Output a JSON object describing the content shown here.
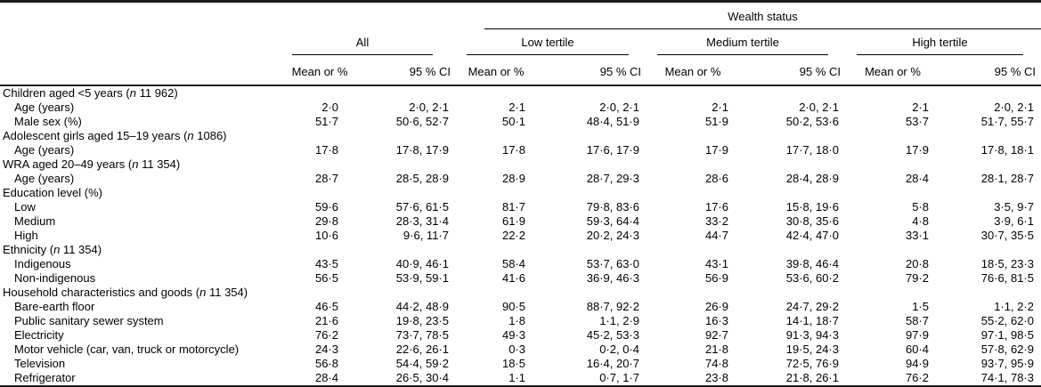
{
  "table": {
    "wealth_status_label": "Wealth status",
    "groups": [
      {
        "label": "All"
      },
      {
        "label": "Low tertile"
      },
      {
        "label": "Medium tertile"
      },
      {
        "label": "High tertile"
      }
    ],
    "subheaders": {
      "mean": "Mean or %",
      "ci": "95 % CI"
    },
    "rows": [
      {
        "type": "section",
        "label": "Children aged <5 years (n 11 962)"
      },
      {
        "type": "data",
        "label": "Age (years)",
        "values": [
          "2·0",
          "2·0, 2·1",
          "2·1",
          "2·0, 2·1",
          "2·1",
          "2·0, 2·1",
          "2·1",
          "2·0, 2·1"
        ]
      },
      {
        "type": "data",
        "label": "Male sex (%)",
        "values": [
          "51·7",
          "50·6, 52·7",
          "50·1",
          "48·4, 51·9",
          "51·9",
          "50·2, 53·6",
          "53·7",
          "51·7, 55·7"
        ]
      },
      {
        "type": "section",
        "label": "Adolescent girls aged 15–19 years (n 1086)"
      },
      {
        "type": "data",
        "label": "Age (years)",
        "values": [
          "17·8",
          "17·8, 17·9",
          "17·8",
          "17·6, 17·9",
          "17·9",
          "17·7, 18·0",
          "17·9",
          "17·8, 18·1"
        ]
      },
      {
        "type": "section",
        "label": "WRA aged 20–49 years (n 11 354)"
      },
      {
        "type": "data",
        "label": "Age (years)",
        "values": [
          "28·7",
          "28·5, 28·9",
          "28·9",
          "28·7, 29·3",
          "28·6",
          "28·4, 28·9",
          "28·4",
          "28·1, 28·7"
        ]
      },
      {
        "type": "section",
        "label": "Education level (%)"
      },
      {
        "type": "data",
        "label": "Low",
        "values": [
          "59·6",
          "57·6, 61·5",
          "81·7",
          "79·8, 83·6",
          "17·6",
          "15·8, 19·6",
          "5·8",
          "3·5, 9·7"
        ]
      },
      {
        "type": "data",
        "label": "Medium",
        "values": [
          "29·8",
          "28·3, 31·4",
          "61·9",
          "59·3, 64·4",
          "33·2",
          "30·8, 35·6",
          "4·8",
          "3·9, 6·1"
        ]
      },
      {
        "type": "data",
        "label": "High",
        "values": [
          "10·6",
          "9·6, 11·7",
          "22·2",
          "20·2, 24·3",
          "44·7",
          "42·4, 47·0",
          "33·1",
          "30·7, 35·5"
        ]
      },
      {
        "type": "section",
        "label": "Ethnicity (n 11 354)"
      },
      {
        "type": "data",
        "label": "Indigenous",
        "values": [
          "43·5",
          "40·9, 46·1",
          "58·4",
          "53·7, 63·0",
          "43·1",
          "39·8, 46·4",
          "20·8",
          "18·5, 23·3"
        ]
      },
      {
        "type": "data",
        "label": "Non-indigenous",
        "values": [
          "56·5",
          "53·9, 59·1",
          "41·6",
          "36·9, 46·3",
          "56·9",
          "53·6, 60·2",
          "79·2",
          "76·6, 81·5"
        ]
      },
      {
        "type": "section",
        "label": "Household characteristics and goods (n 11 354)"
      },
      {
        "type": "data",
        "label": "Bare-earth floor",
        "values": [
          "46·5",
          "44·2, 48·9",
          "90·5",
          "88·7, 92·2",
          "26·9",
          "24·7, 29·2",
          "1·5",
          "1·1, 2·2"
        ]
      },
      {
        "type": "data",
        "label": "Public sanitary sewer system",
        "values": [
          "21·6",
          "19·8, 23·5",
          "1·8",
          "1·1, 2·9",
          "16·3",
          "14·1, 18·7",
          "58·7",
          "55·2, 62·0"
        ]
      },
      {
        "type": "data",
        "label": "Electricity",
        "values": [
          "76·2",
          "73·7, 78·5",
          "49·3",
          "45·2, 53·3",
          "92·7",
          "91·3, 94·3",
          "97·9",
          "97·1, 98·5"
        ]
      },
      {
        "type": "data",
        "label": "Motor vehicle (car, van, truck or motorcycle)",
        "values": [
          "24·3",
          "22·6, 26·1",
          "0·3",
          "0·2, 0·4",
          "21·8",
          "19·5, 24·3",
          "60·4",
          "57·8, 62·9"
        ]
      },
      {
        "type": "data",
        "label": "Television",
        "values": [
          "56·8",
          "54·4, 59·2",
          "18·5",
          "16·4, 20·7",
          "74·8",
          "72·5, 76·9",
          "94·9",
          "93·7, 95·9"
        ]
      },
      {
        "type": "data",
        "label": "Refrigerator",
        "values": [
          "28·4",
          "26·5, 30·4",
          "1·1",
          "0·7, 1·7",
          "23·8",
          "21·8, 26·1",
          "76·2",
          "74·1, 78·3"
        ]
      }
    ]
  }
}
